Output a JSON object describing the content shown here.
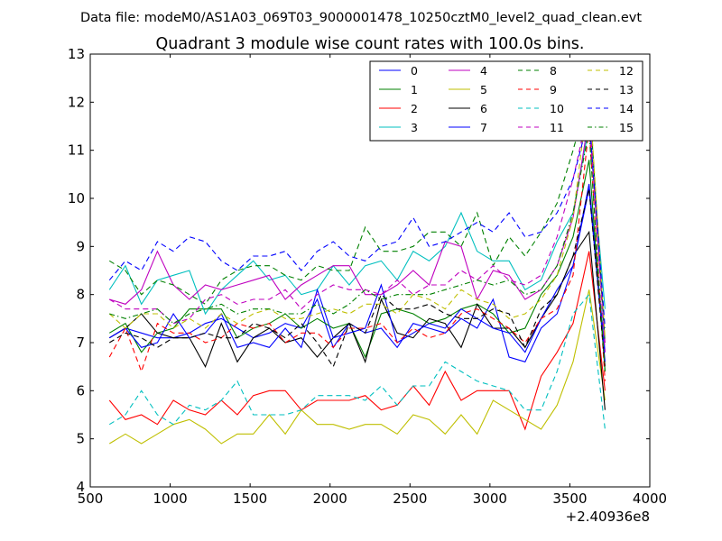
{
  "figure": {
    "suptitle": "Data file: modeM0/AS1A03_069T03_9000001478_10250cztM0_level2_quad_clean.evt"
  },
  "chart_data": {
    "type": "line",
    "title": "Quadrant 3 module wise count rates with 100.0s bins.",
    "xlabel": "",
    "ylabel": "",
    "x_offset_label": "+2.40936e8",
    "xlim": [
      500,
      4000
    ],
    "ylim": [
      4,
      13
    ],
    "x_ticks": [
      500,
      1000,
      1500,
      2000,
      2500,
      3000,
      3500,
      4000
    ],
    "y_ticks": [
      4,
      5,
      6,
      7,
      8,
      9,
      10,
      11,
      12,
      13
    ],
    "grid": false,
    "legend_position": "top-right",
    "legend_columns": 4,
    "x": [
      620,
      720,
      820,
      920,
      1020,
      1120,
      1220,
      1320,
      1420,
      1520,
      1620,
      1720,
      1820,
      1920,
      2020,
      2120,
      2220,
      2320,
      2420,
      2520,
      2620,
      2720,
      2820,
      2920,
      3020,
      3120,
      3220,
      3320,
      3420,
      3520,
      3620,
      3720
    ],
    "series": [
      {
        "name": "0",
        "color": "#0000ff",
        "dash": "solid",
        "values": [
          7.1,
          7.3,
          7.2,
          7.1,
          7.1,
          7.2,
          7.4,
          7.5,
          7.3,
          7.1,
          7.2,
          7.4,
          7.3,
          7.9,
          6.9,
          7.4,
          7.2,
          7.3,
          6.9,
          7.4,
          7.3,
          7.2,
          7.5,
          7.3,
          7.9,
          6.7,
          6.6,
          7.3,
          7.6,
          8.6,
          10.3,
          6.8
        ]
      },
      {
        "name": "1",
        "color": "#008000",
        "dash": "solid",
        "values": [
          7.2,
          7.4,
          6.8,
          7.2,
          7.3,
          7.7,
          7.7,
          7.7,
          7.1,
          7.3,
          7.4,
          7.6,
          7.3,
          7.5,
          7.3,
          7.4,
          6.7,
          7.6,
          7.7,
          7.6,
          7.4,
          7.5,
          7.7,
          7.8,
          7.6,
          7.2,
          7.3,
          8.0,
          8.4,
          9.2,
          10.8,
          6.4
        ]
      },
      {
        "name": "2",
        "color": "#ff0000",
        "dash": "solid",
        "values": [
          5.8,
          5.4,
          5.5,
          5.3,
          5.8,
          5.6,
          5.5,
          5.8,
          5.5,
          5.9,
          6.0,
          6.0,
          5.6,
          5.8,
          5.8,
          5.8,
          5.9,
          5.6,
          5.7,
          6.1,
          5.7,
          6.4,
          5.8,
          6.0,
          6.0,
          6.0,
          5.2,
          6.3,
          6.8,
          7.4,
          8.9,
          6.0
        ]
      },
      {
        "name": "3",
        "color": "#00bfbf",
        "dash": "solid",
        "values": [
          8.1,
          8.6,
          7.8,
          8.3,
          8.4,
          8.5,
          7.6,
          8.1,
          8.4,
          8.7,
          8.3,
          8.4,
          8.0,
          8.1,
          8.6,
          8.2,
          8.6,
          8.7,
          8.3,
          8.9,
          8.7,
          9.0,
          9.7,
          8.9,
          8.7,
          8.7,
          8.1,
          8.3,
          9.1,
          9.7,
          11.5,
          7.7
        ]
      },
      {
        "name": "4",
        "color": "#bf00bf",
        "dash": "solid",
        "values": [
          7.9,
          7.8,
          8.1,
          8.9,
          8.2,
          7.9,
          8.2,
          8.1,
          8.2,
          8.3,
          8.4,
          7.9,
          8.2,
          8.4,
          8.6,
          8.6,
          8.0,
          8.0,
          8.2,
          8.5,
          8.2,
          9.1,
          9.0,
          7.9,
          8.5,
          8.4,
          7.9,
          8.1,
          8.6,
          9.6,
          11.7,
          7.0
        ]
      },
      {
        "name": "5",
        "color": "#bfbf00",
        "dash": "solid",
        "values": [
          4.9,
          5.1,
          4.9,
          5.1,
          5.3,
          5.4,
          5.2,
          4.9,
          5.1,
          5.1,
          5.5,
          5.1,
          5.6,
          5.3,
          5.3,
          5.2,
          5.3,
          5.3,
          5.1,
          5.5,
          5.4,
          5.1,
          5.5,
          5.1,
          5.8,
          5.6,
          5.4,
          5.2,
          5.7,
          6.6,
          8.1,
          5.8
        ]
      },
      {
        "name": "6",
        "color": "#000000",
        "dash": "solid",
        "values": [
          7.1,
          7.3,
          7.6,
          7.2,
          7.1,
          7.1,
          6.5,
          7.4,
          6.6,
          7.1,
          7.3,
          7.0,
          7.1,
          6.7,
          7.1,
          7.4,
          6.6,
          7.9,
          7.2,
          7.1,
          7.5,
          7.4,
          6.9,
          7.8,
          7.3,
          7.3,
          6.9,
          7.5,
          8.0,
          8.8,
          9.3,
          5.6
        ]
      },
      {
        "name": "7",
        "color": "#0000ff",
        "dash": "solid",
        "values": [
          7.1,
          7.3,
          6.9,
          7.0,
          7.6,
          7.1,
          7.2,
          7.6,
          6.9,
          7.0,
          6.9,
          7.3,
          6.9,
          8.1,
          7.1,
          7.2,
          7.3,
          8.2,
          7.0,
          7.2,
          7.4,
          7.3,
          7.7,
          7.5,
          7.3,
          7.2,
          6.8,
          7.5,
          8.1,
          8.6,
          10.2,
          6.6
        ]
      },
      {
        "name": "8",
        "color": "#008000",
        "dash": "dashed",
        "values": [
          8.7,
          8.5,
          8.0,
          8.3,
          8.2,
          8.0,
          7.8,
          8.3,
          8.5,
          8.6,
          8.6,
          8.4,
          8.3,
          8.6,
          8.5,
          8.5,
          9.4,
          8.9,
          8.9,
          9.0,
          9.3,
          9.3,
          9.0,
          9.7,
          8.6,
          9.2,
          8.8,
          9.3,
          9.9,
          11.0,
          12.2,
          7.0
        ]
      },
      {
        "name": "9",
        "color": "#ff0000",
        "dash": "dashed",
        "values": [
          6.7,
          7.3,
          6.4,
          7.4,
          7.2,
          7.2,
          7.0,
          7.1,
          7.4,
          7.3,
          7.4,
          7.0,
          7.2,
          7.2,
          6.9,
          7.3,
          7.3,
          7.4,
          7.0,
          7.3,
          7.1,
          7.2,
          7.6,
          7.7,
          7.5,
          7.3,
          7.0,
          7.5,
          7.7,
          8.4,
          11.5,
          6.2
        ]
      },
      {
        "name": "10",
        "color": "#00bfbf",
        "dash": "dashed",
        "values": [
          5.3,
          5.5,
          6.0,
          5.5,
          5.3,
          5.7,
          5.6,
          5.8,
          6.2,
          5.5,
          5.5,
          5.5,
          5.6,
          5.9,
          5.9,
          5.9,
          5.8,
          6.1,
          5.7,
          6.1,
          6.1,
          6.6,
          6.4,
          6.2,
          6.1,
          6.0,
          5.6,
          5.6,
          6.4,
          7.6,
          8.0,
          5.2
        ]
      },
      {
        "name": "11",
        "color": "#bf00bf",
        "dash": "dashed",
        "values": [
          7.9,
          7.7,
          7.7,
          7.7,
          7.4,
          7.5,
          7.9,
          8.0,
          7.8,
          7.9,
          7.9,
          8.1,
          7.7,
          8.0,
          8.2,
          8.1,
          8.1,
          8.0,
          8.3,
          8.0,
          8.2,
          8.2,
          8.5,
          8.3,
          8.6,
          8.3,
          8.2,
          8.4,
          9.2,
          10.4,
          11.9,
          6.8
        ]
      },
      {
        "name": "12",
        "color": "#bfbf00",
        "dash": "dashed",
        "values": [
          7.6,
          7.3,
          7.6,
          7.6,
          7.3,
          7.5,
          7.3,
          7.6,
          7.4,
          7.6,
          7.7,
          7.5,
          7.5,
          7.6,
          7.7,
          7.6,
          7.8,
          7.8,
          7.6,
          8.0,
          7.9,
          7.7,
          8.1,
          7.9,
          7.8,
          7.5,
          7.6,
          7.9,
          8.4,
          9.6,
          12.3,
          7.1
        ]
      },
      {
        "name": "13",
        "color": "#000000",
        "dash": "dashed",
        "values": [
          7.0,
          7.2,
          7.1,
          6.9,
          7.1,
          7.1,
          7.2,
          7.1,
          7.1,
          7.4,
          7.3,
          7.1,
          7.4,
          7.0,
          6.5,
          7.4,
          7.2,
          8.0,
          7.7,
          7.7,
          7.8,
          7.6,
          7.5,
          7.5,
          7.7,
          7.6,
          6.9,
          7.7,
          8.0,
          8.8,
          10.2,
          6.5
        ]
      },
      {
        "name": "14",
        "color": "#0000ff",
        "dash": "dashed",
        "values": [
          8.3,
          8.7,
          8.5,
          9.1,
          8.9,
          9.2,
          9.1,
          8.7,
          8.5,
          8.8,
          8.8,
          8.9,
          8.5,
          8.9,
          9.1,
          8.8,
          8.7,
          9.0,
          9.1,
          9.6,
          9.0,
          9.1,
          9.3,
          9.5,
          9.3,
          9.7,
          9.2,
          9.3,
          9.7,
          10.4,
          11.7,
          7.3
        ]
      },
      {
        "name": "15",
        "color": "#008000",
        "dash": "dashdot",
        "values": [
          7.6,
          7.5,
          7.6,
          7.7,
          7.4,
          7.6,
          7.7,
          7.8,
          7.6,
          7.7,
          7.7,
          7.6,
          7.6,
          7.8,
          7.6,
          7.8,
          8.1,
          7.9,
          8.0,
          8.0,
          8.0,
          8.1,
          8.2,
          8.3,
          8.2,
          8.3,
          8.0,
          8.1,
          8.6,
          9.7,
          11.4,
          6.4
        ]
      }
    ]
  }
}
